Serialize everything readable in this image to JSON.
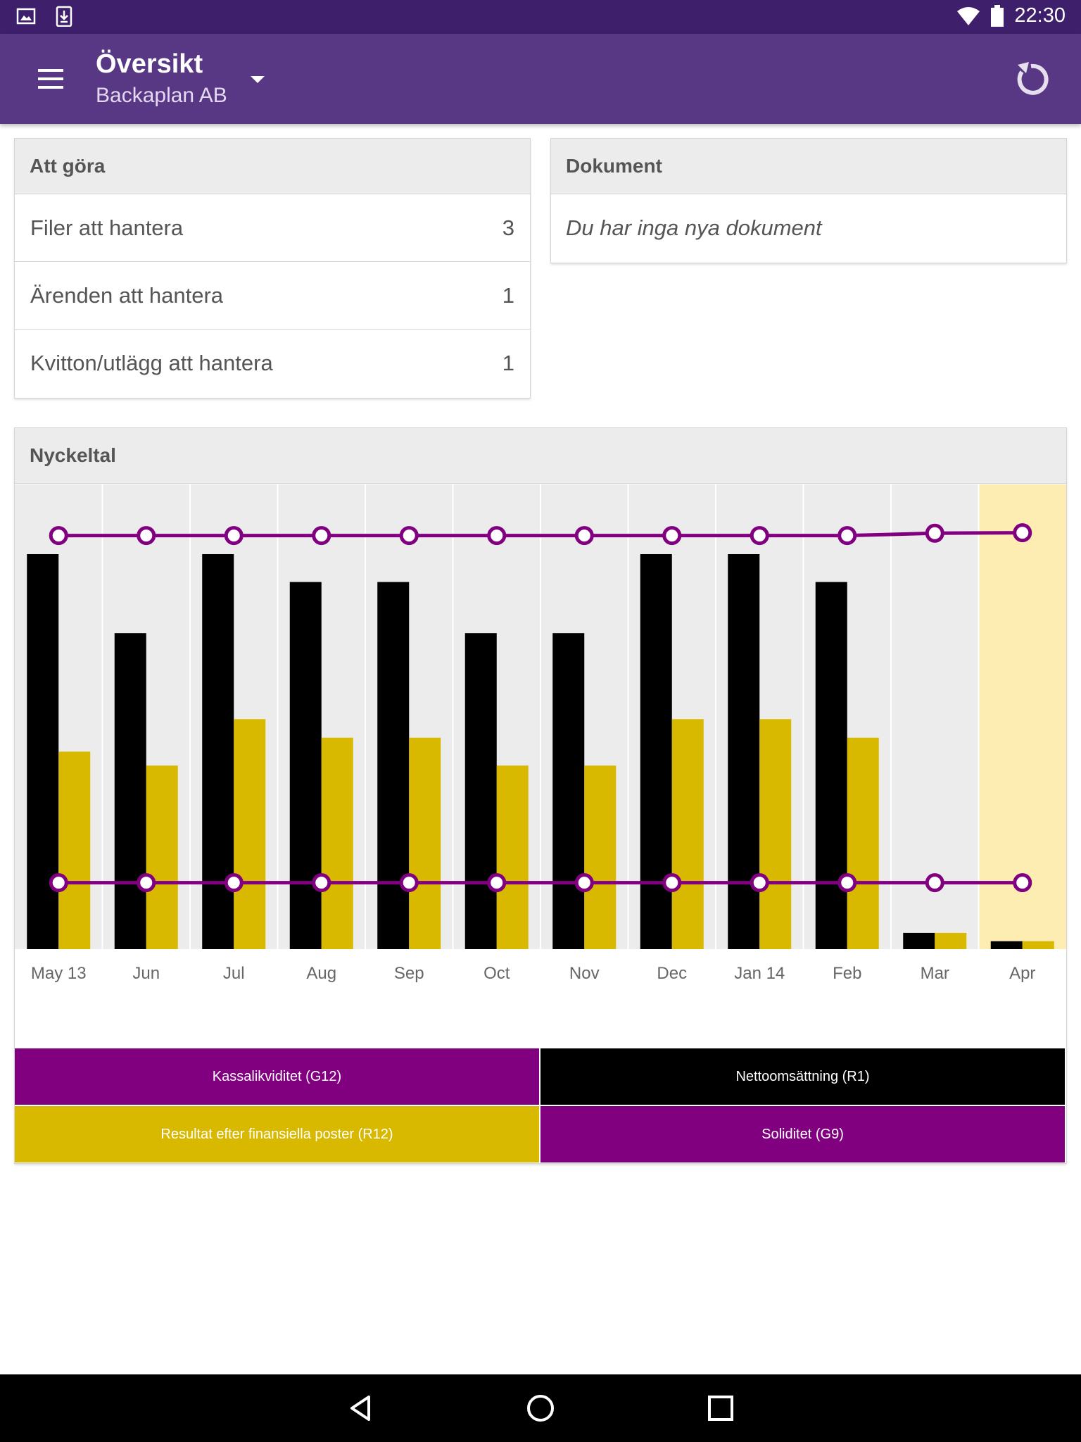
{
  "status_bar": {
    "time": "22:30",
    "icons": [
      "image-icon",
      "download-icon",
      "wifi-icon",
      "battery-icon"
    ]
  },
  "app_bar": {
    "title": "Översikt",
    "subtitle": "Backaplan AB",
    "icons": [
      "menu-icon",
      "dropdown-arrow-icon",
      "refresh-icon"
    ]
  },
  "todo": {
    "title": "Att göra",
    "items": [
      {
        "label": "Filer att hantera",
        "count": "3"
      },
      {
        "label": "Ärenden att hantera",
        "count": "1"
      },
      {
        "label": "Kvitton/utlägg att hantera",
        "count": "1"
      }
    ]
  },
  "documents": {
    "title": "Dokument",
    "empty_text": "Du har inga nya dokument"
  },
  "nyckeltal": {
    "title": "Nyckeltal",
    "legend": [
      {
        "label": "Kassalikviditet (G12)",
        "color": "#800080",
        "text_color": "#ffffff"
      },
      {
        "label": "Nettoomsättning (R1)",
        "color": "#000000",
        "text_color": "#ffffff"
      },
      {
        "label": "Resultat efter finansiella poster (R12)",
        "color": "#d9b800",
        "text_color": "#ffffff"
      },
      {
        "label": "Soliditet (G9)",
        "color": "#800080",
        "text_color": "#ffffff"
      }
    ]
  },
  "chart_data": {
    "type": "bar",
    "categories": [
      "May 13",
      "Jun",
      "Jul",
      "Aug",
      "Sep",
      "Oct",
      "Nov",
      "Dec",
      "Jan 14",
      "Feb",
      "Mar",
      "Apr"
    ],
    "highlighted_category": "Apr",
    "series": [
      {
        "name": "Nettoomsättning (R1)",
        "kind": "bar",
        "color": "#000000",
        "values": [
          0.85,
          0.68,
          0.85,
          0.79,
          0.79,
          0.68,
          0.68,
          0.85,
          0.85,
          0.79,
          0.035,
          0.017
        ]
      },
      {
        "name": "Resultat efter finansiella poster (R12)",
        "kind": "bar",
        "color": "#d9b800",
        "values": [
          0.425,
          0.395,
          0.495,
          0.455,
          0.455,
          0.395,
          0.395,
          0.495,
          0.495,
          0.455,
          0.035,
          0.017
        ]
      },
      {
        "name": "Kassalikviditet (G12)",
        "kind": "line",
        "color": "#800080",
        "values": [
          0.89,
          0.89,
          0.89,
          0.89,
          0.89,
          0.89,
          0.89,
          0.89,
          0.89,
          0.89,
          0.895,
          0.896
        ]
      },
      {
        "name": "Soliditet (G9)",
        "kind": "line",
        "color": "#800080",
        "values": [
          0.143,
          0.143,
          0.143,
          0.143,
          0.143,
          0.143,
          0.143,
          0.143,
          0.143,
          0.143,
          0.143,
          0.143
        ]
      }
    ],
    "ylim": [
      0,
      1
    ],
    "grid": true,
    "legend_position": "bottom"
  },
  "nav_bar": {
    "icons": [
      "back-icon",
      "home-icon",
      "recents-icon"
    ]
  }
}
